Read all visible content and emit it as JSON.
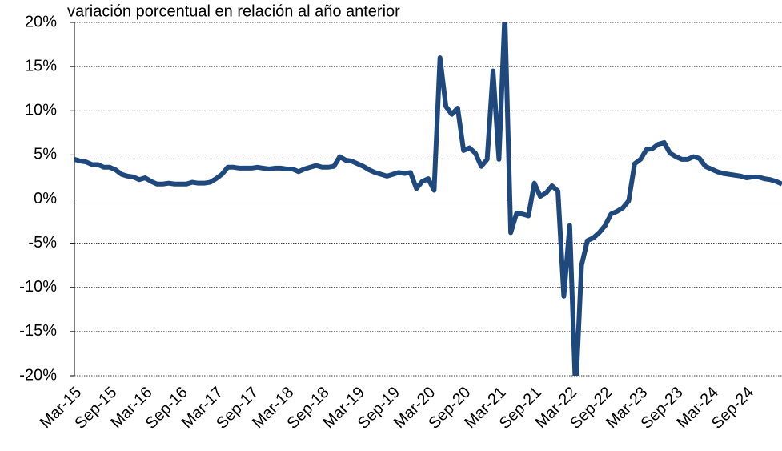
{
  "chart_data": {
    "type": "line",
    "title": "variación porcentual en relación al año anterior",
    "categories": [
      "Mar-15",
      null,
      null,
      null,
      null,
      null,
      "Sep-15",
      null,
      null,
      null,
      null,
      null,
      "Mar-16",
      null,
      null,
      null,
      null,
      null,
      "Sep-16",
      null,
      null,
      null,
      null,
      null,
      "Mar-17",
      null,
      null,
      null,
      null,
      null,
      "Sep-17",
      null,
      null,
      null,
      null,
      null,
      "Mar-18",
      null,
      null,
      null,
      null,
      null,
      "Sep-18",
      null,
      null,
      null,
      null,
      null,
      "Mar-19",
      null,
      null,
      null,
      null,
      null,
      "Sep-19",
      null,
      null,
      null,
      null,
      null,
      "Mar-20",
      null,
      null,
      null,
      null,
      null,
      "Sep-20",
      null,
      null,
      null,
      null,
      null,
      "Mar-21",
      null,
      null,
      null,
      null,
      null,
      "Sep-21",
      null,
      null,
      null,
      null,
      null,
      "Mar-22",
      null,
      null,
      null,
      null,
      null,
      "Sep-22",
      null,
      null,
      null,
      null,
      null,
      "Mar-23",
      null,
      null,
      null,
      null,
      null,
      "Sep-23",
      null,
      null,
      null,
      null,
      null,
      "Mar-24",
      null,
      null,
      null,
      null,
      null,
      "Sep-24",
      null,
      null,
      null,
      null,
      null,
      null
    ],
    "series": [
      {
        "color": "#1f497d",
        "values": [
          4.5,
          4.3,
          4.2,
          3.9,
          3.9,
          3.6,
          3.6,
          3.3,
          2.8,
          2.6,
          2.5,
          2.2,
          2.4,
          2.0,
          1.7,
          1.7,
          1.8,
          1.7,
          1.7,
          1.7,
          1.9,
          1.8,
          1.8,
          1.9,
          2.3,
          2.8,
          3.6,
          3.6,
          3.5,
          3.5,
          3.5,
          3.6,
          3.5,
          3.4,
          3.5,
          3.5,
          3.4,
          3.4,
          3.1,
          3.4,
          3.6,
          3.8,
          3.6,
          3.6,
          3.7,
          4.8,
          4.4,
          4.3,
          4.0,
          3.7,
          3.3,
          3.0,
          2.8,
          2.6,
          2.8,
          3.0,
          2.9,
          3.0,
          1.2,
          2.0,
          2.3,
          1.0,
          16.0,
          10.5,
          9.6,
          10.3,
          5.5,
          5.8,
          5.2,
          3.7,
          4.5,
          14.5,
          4.5,
          21,
          -3.8,
          -1.6,
          -1.7,
          -1.9,
          1.8,
          0.3,
          0.7,
          1.5,
          0.9,
          -11.0,
          -3.0,
          -22,
          -7.5,
          -4.7,
          -4.4,
          -3.8,
          -3.0,
          -1.7,
          -1.4,
          -1.0,
          -0.2,
          4.0,
          4.5,
          5.6,
          5.7,
          6.2,
          6.4,
          5.2,
          4.8,
          4.5,
          4.5,
          4.8,
          4.6,
          3.7,
          3.4,
          3.1,
          2.9,
          2.8,
          2.7,
          2.6,
          2.4,
          2.5,
          2.5,
          2.3,
          2.2,
          2.0,
          1.7
        ]
      }
    ],
    "ylim": [
      -20,
      20
    ],
    "yticks": [
      {
        "value": -20,
        "label": "-20%"
      },
      {
        "value": -15,
        "label": "-15%"
      },
      {
        "value": -10,
        "label": "-10%"
      },
      {
        "value": -5,
        "label": "-5%"
      },
      {
        "value": 0,
        "label": "0%"
      },
      {
        "value": 5,
        "label": "5%"
      },
      {
        "value": 10,
        "label": "10%"
      },
      {
        "value": 15,
        "label": "15%"
      },
      {
        "value": 20,
        "label": "20%"
      }
    ],
    "grid": true
  }
}
